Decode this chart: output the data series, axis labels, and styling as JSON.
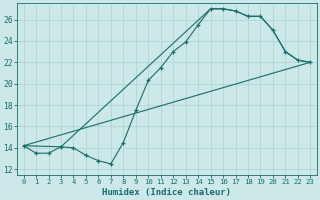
{
  "xlabel": "Humidex (Indice chaleur)",
  "background_color": "#cce8e8",
  "grid_color": "#b0d4d4",
  "line_color": "#1a6b6b",
  "xlim": [
    -0.5,
    23.5
  ],
  "ylim": [
    11.5,
    27.5
  ],
  "xticks": [
    0,
    1,
    2,
    3,
    4,
    5,
    6,
    7,
    8,
    9,
    10,
    11,
    12,
    13,
    14,
    15,
    16,
    17,
    18,
    19,
    20,
    21,
    22,
    23
  ],
  "yticks": [
    12,
    14,
    16,
    18,
    20,
    22,
    24,
    26
  ],
  "line1_x": [
    0,
    1,
    2,
    3,
    4,
    5,
    6,
    7,
    8,
    9,
    10,
    11,
    12,
    13,
    14,
    15,
    16,
    17,
    18,
    19,
    20,
    21,
    22,
    23
  ],
  "line1_y": [
    14.2,
    13.5,
    13.5,
    14.1,
    14.0,
    13.3,
    12.8,
    12.5,
    14.5,
    17.5,
    20.3,
    21.5,
    23.0,
    23.9,
    25.5,
    27.0,
    27.0,
    26.8,
    26.3,
    26.3,
    25.0,
    23.0,
    22.2,
    22.0
  ],
  "line2_x": [
    0,
    3,
    15,
    16,
    17,
    18,
    19,
    20,
    21,
    22,
    23
  ],
  "line2_y": [
    14.2,
    14.1,
    27.0,
    27.0,
    26.8,
    26.3,
    26.3,
    25.0,
    23.0,
    22.2,
    22.0
  ],
  "line3_x": [
    0,
    23
  ],
  "line3_y": [
    14.2,
    22.0
  ]
}
